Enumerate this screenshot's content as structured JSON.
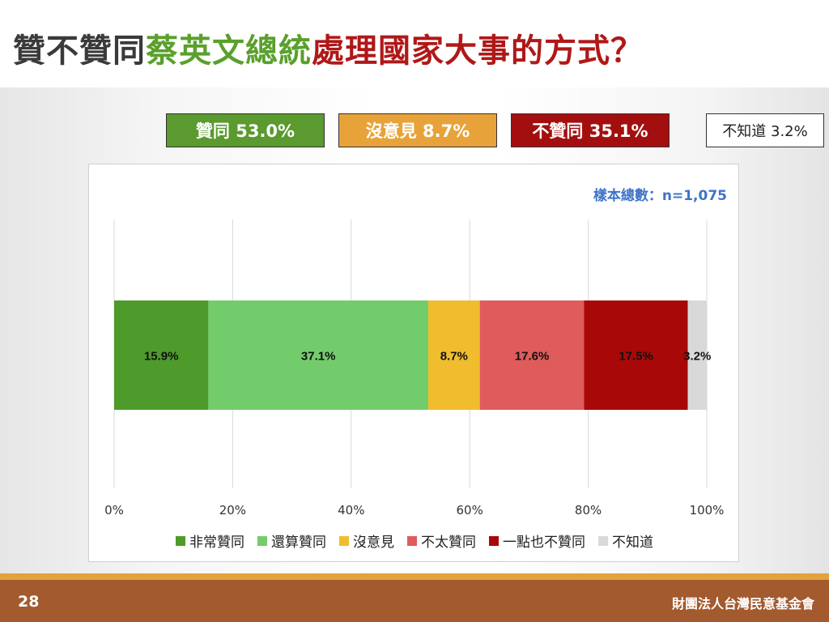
{
  "title": {
    "part1": "贊不贊同",
    "part2": "蔡英文總統",
    "part3": "處理國家大事的方式？"
  },
  "summary": {
    "approve": "贊同 53.0%",
    "no_opinion": "沒意見 8.7%",
    "disapprove": "不贊同 35.1%",
    "dont_know": "不知道 3.2%"
  },
  "sample_size": "樣本總數：n=1,075",
  "chart_data": {
    "type": "bar",
    "orientation": "horizontal-stacked-100",
    "xlim": [
      0,
      100
    ],
    "ticks": [
      0,
      20,
      40,
      60,
      80,
      100
    ],
    "tick_labels": [
      "0%",
      "20%",
      "40%",
      "60%",
      "80%",
      "100%"
    ],
    "grid": true,
    "legend_position": "bottom",
    "series": [
      {
        "name": "非常贊同",
        "value": 15.9,
        "label": "15.9%",
        "color": "#4e9a2a"
      },
      {
        "name": "還算贊同",
        "value": 37.1,
        "label": "37.1%",
        "color": "#73cc6c"
      },
      {
        "name": "沒意見",
        "value": 8.7,
        "label": "8.7%",
        "color": "#f0bd2e"
      },
      {
        "name": "不太贊同",
        "value": 17.6,
        "label": "17.6%",
        "color": "#e05b5b"
      },
      {
        "name": "一點也不贊同",
        "value": 17.5,
        "label": "17.5%",
        "color": "#a80808"
      },
      {
        "name": "不知道",
        "value": 3.2,
        "label": "3.2%",
        "color": "#d9d9d9"
      }
    ]
  },
  "footer": {
    "page": "28",
    "org": "財團法人台灣民意基金會"
  }
}
